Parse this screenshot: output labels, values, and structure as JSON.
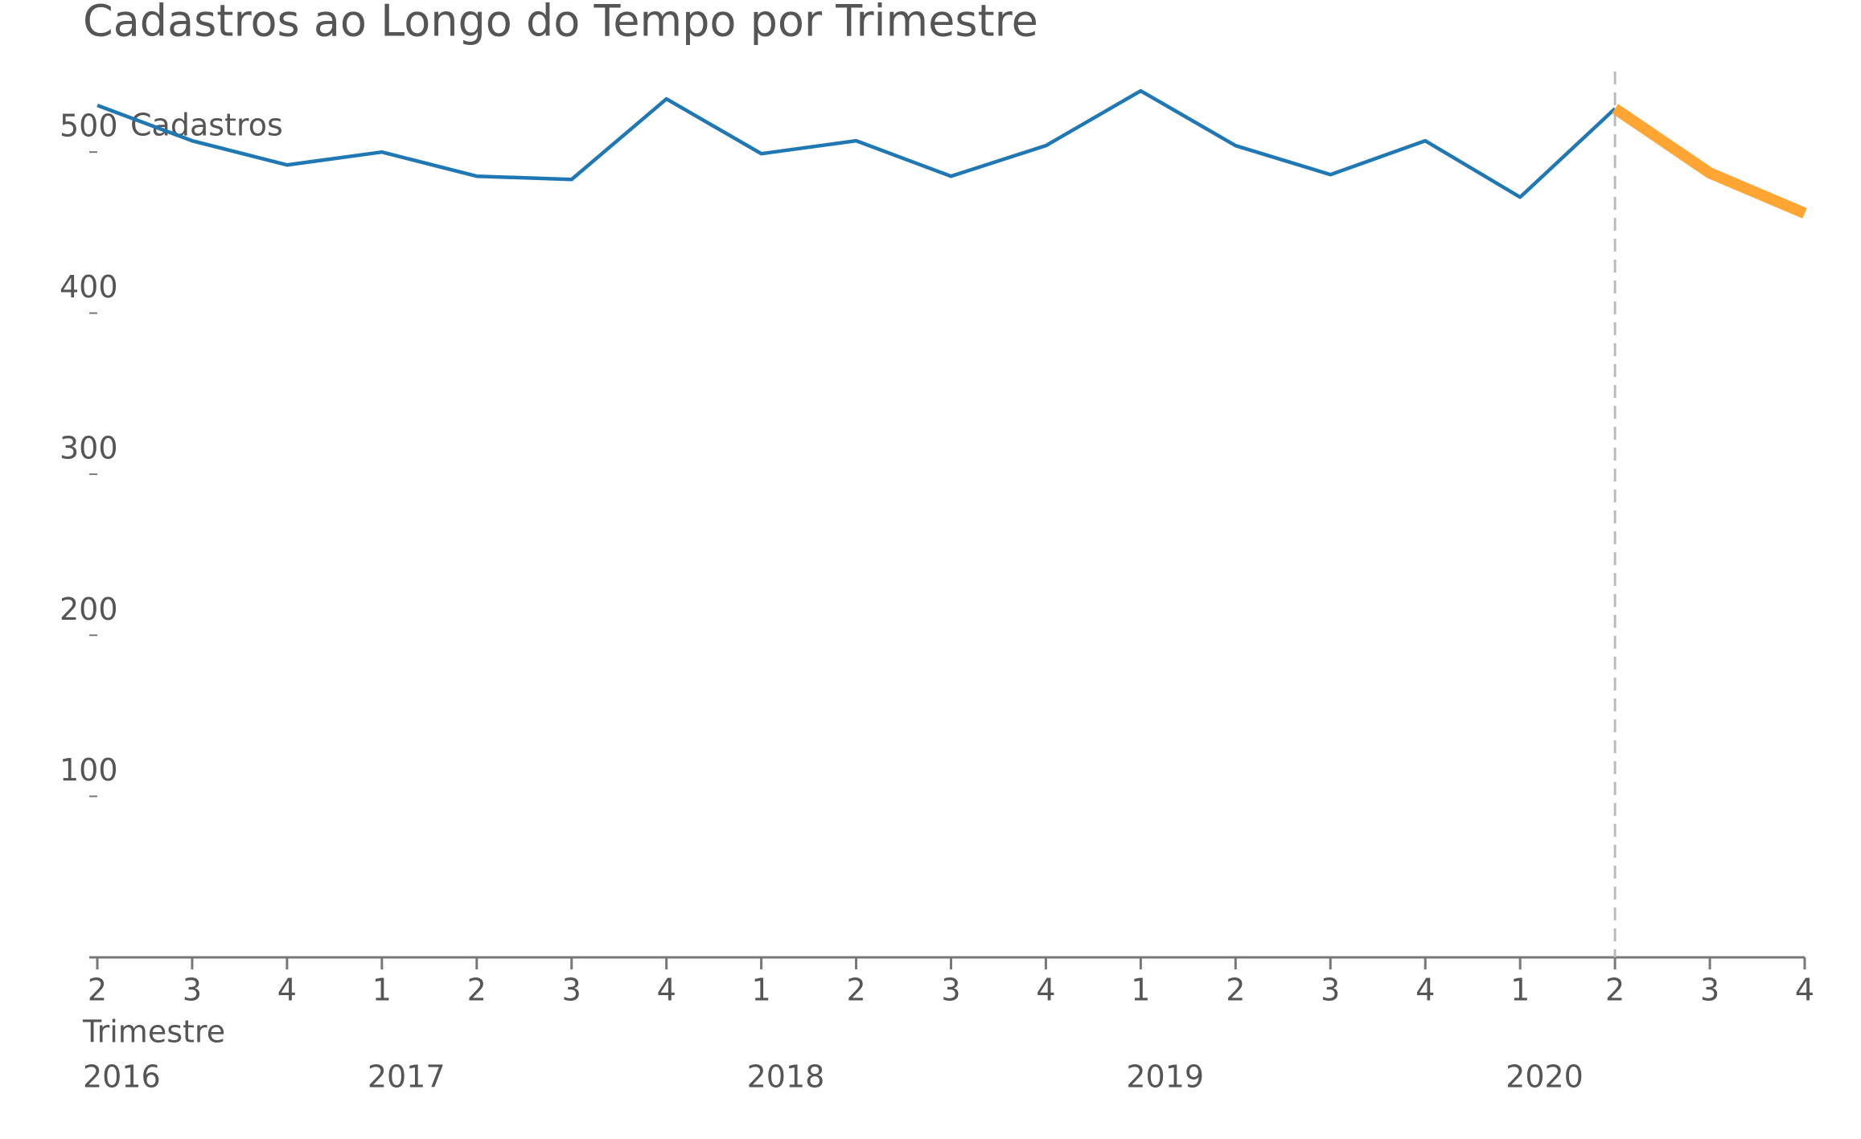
{
  "chart_data": {
    "type": "line",
    "title": "Cadastros ao Longo do Tempo por Trimestre",
    "y_label": "Cadastros",
    "x_label": "Trimestre",
    "categories": [
      "2",
      "3",
      "4",
      "1",
      "2",
      "3",
      "4",
      "1",
      "2",
      "3",
      "4",
      "1",
      "2",
      "3",
      "4",
      "1",
      "2",
      "3",
      "4"
    ],
    "years": [
      "2016",
      null,
      null,
      "2017",
      null,
      null,
      null,
      "2018",
      null,
      null,
      null,
      "2019",
      null,
      null,
      null,
      "2020",
      null,
      null,
      null
    ],
    "series": [
      {
        "color": "#1f77b4",
        "values": [
          529,
          507,
          492,
          500,
          485,
          483,
          533,
          499,
          507,
          485,
          504,
          538,
          504,
          486,
          507,
          472,
          527,
          null,
          null
        ]
      },
      {
        "color": "#ffa533",
        "values": [
          null,
          null,
          null,
          null,
          null,
          null,
          null,
          null,
          null,
          null,
          null,
          null,
          null,
          null,
          null,
          null,
          527,
          487,
          462
        ]
      }
    ],
    "ylim": [
      0,
      550
    ],
    "yticks": [
      100,
      200,
      300,
      400,
      500
    ],
    "grid": false,
    "reference_line": {
      "category_index": 16,
      "color": "#bbbbbb",
      "style": "dashed"
    }
  }
}
